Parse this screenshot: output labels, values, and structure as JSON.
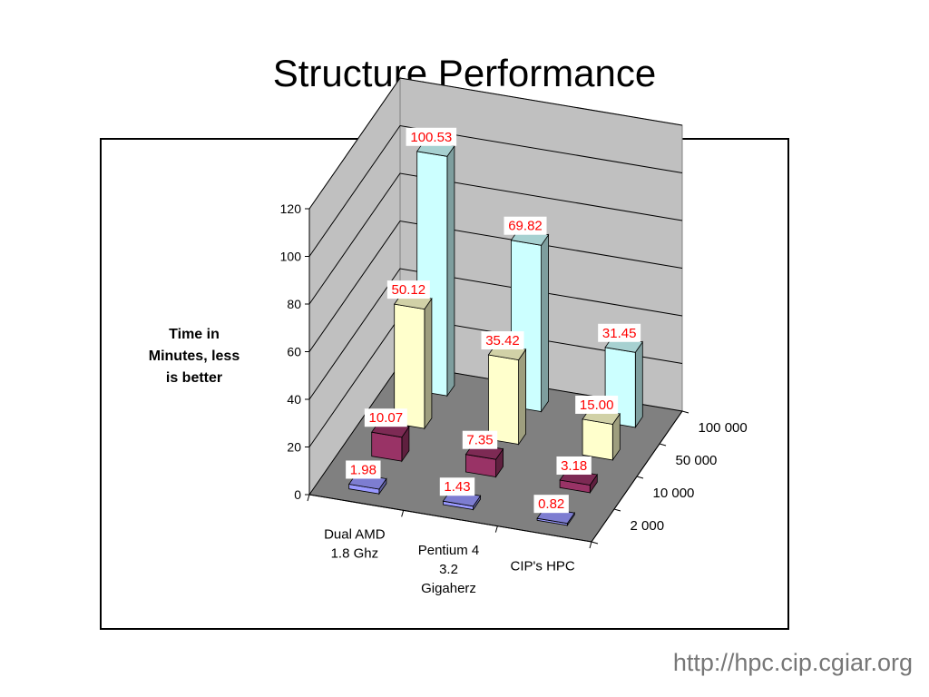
{
  "slide": {
    "title": "Structure Performance",
    "footer_url": "http://hpc.cip.cgiar.org"
  },
  "chart_data": {
    "type": "bar",
    "subtype": "3d-clustered-columns",
    "ylabel": "Time in Minutes, less is better",
    "ylabel_lines": [
      "Time in",
      "Minutes, less",
      "is better"
    ],
    "ylim": [
      0,
      120
    ],
    "yticks": [
      0,
      20,
      40,
      60,
      80,
      100,
      120
    ],
    "categories": [
      "Dual AMD 1.8 Ghz",
      "Pentium 4 3.2 Gigaherz",
      "CIP's HPC"
    ],
    "category_label_lines": [
      [
        "Dual AMD",
        "1.8 Ghz"
      ],
      [
        "Pentium 4",
        "3.2",
        "Gigaherz"
      ],
      [
        "CIP's HPC"
      ]
    ],
    "series": [
      {
        "name": "2 000",
        "values": [
          1.98,
          1.43,
          0.82
        ],
        "color": "#9999ff",
        "labels": [
          "1.98",
          "1.43",
          "0.82"
        ]
      },
      {
        "name": "10 000",
        "values": [
          10.07,
          7.35,
          3.18
        ],
        "color": "#993366",
        "labels": [
          "10.07",
          "7.35",
          "3.18"
        ]
      },
      {
        "name": "50 000",
        "values": [
          50.12,
          35.42,
          15.0
        ],
        "color": "#ffffcc",
        "labels": [
          "50.12",
          "35.42",
          "15.00"
        ]
      },
      {
        "name": "100 000",
        "values": [
          100.53,
          69.82,
          31.45
        ],
        "color": "#ccffff",
        "labels": [
          "100.53",
          "69.82",
          "31.45"
        ]
      }
    ],
    "label_color": "#ff0000",
    "grid": true,
    "legend": "none (series names shown on depth axis)"
  }
}
